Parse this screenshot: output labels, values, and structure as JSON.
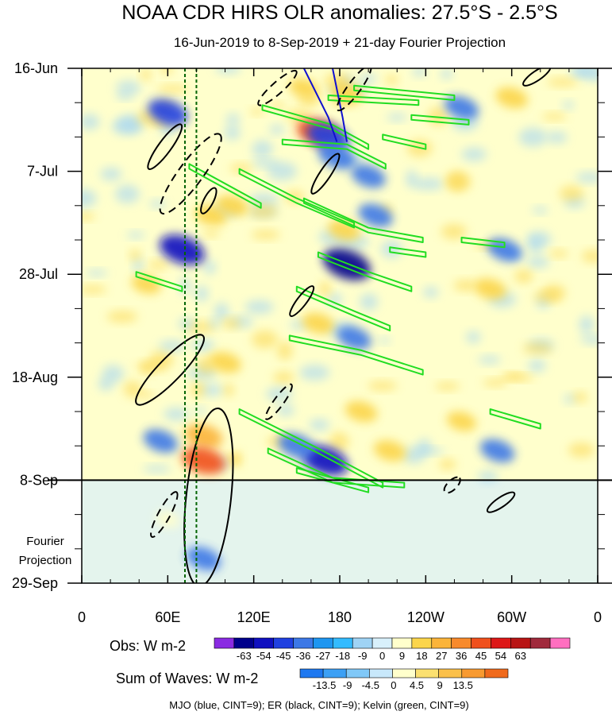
{
  "chart_data": {
    "type": "heatmap",
    "title": "NOAA CDR HIRS OLR anomalies: 27.5°S - 2.5°S",
    "subtitle": "16-Jun-2019 to 8-Sep-2019 + 21-day Fourier Projection",
    "x_ticks": [
      {
        "lon": 0,
        "label": "0"
      },
      {
        "lon": 60,
        "label": "60E"
      },
      {
        "lon": 120,
        "label": "120E"
      },
      {
        "lon": 180,
        "label": "180"
      },
      {
        "lon": 240,
        "label": "120W"
      },
      {
        "lon": 300,
        "label": "60W"
      },
      {
        "lon": 360,
        "label": "0"
      }
    ],
    "xlim": [
      0,
      360
    ],
    "y_ticks": [
      {
        "day": 0,
        "label": "16-Jun"
      },
      {
        "day": 21,
        "label": "7-Jul"
      },
      {
        "day": 42,
        "label": "28-Jul"
      },
      {
        "day": 63,
        "label": "18-Aug"
      },
      {
        "day": 84,
        "label": "8-Sep"
      },
      {
        "day": 105,
        "label": "29-Sep"
      }
    ],
    "ylim": [
      0,
      105
    ],
    "observation_end_day": 84,
    "projection_label_line1": "Fourier",
    "projection_label_line2": "Projection",
    "obs_colorbar": {
      "label": "Obs: W m-2",
      "levels": [
        "-63",
        "-54",
        "-45",
        "-36",
        "-27",
        "-18",
        "-9",
        "0",
        "9",
        "18",
        "27",
        "36",
        "45",
        "54",
        "63"
      ],
      "colors": [
        "#8a2be2",
        "#00008b",
        "#1010c0",
        "#2040e0",
        "#3c78e6",
        "#1e96f0",
        "#33bbff",
        "#9fd3f5",
        "#d8f0fb",
        "#ffffcc",
        "#fbd54b",
        "#fbb43a",
        "#f88a2c",
        "#f0501c",
        "#dd1818",
        "#b81515",
        "#a02a3c",
        "#ff6fc0"
      ]
    },
    "waves_colorbar": {
      "label": "Sum of Waves: W m-2",
      "levels": [
        "-13.5",
        "-9",
        "-4.5",
        "0",
        "4.5",
        "9",
        "13.5"
      ],
      "colors": [
        "#1e78f0",
        "#3ca0f5",
        "#80c8f8",
        "#c8e8fb",
        "#ffffcc",
        "#fbe070",
        "#fbc04a",
        "#f89a30",
        "#f06a1c"
      ]
    },
    "footer": "MJO (blue, CINT=9); ER (black, CINT=9); Kelvin (green, CINT=9)",
    "wave_colors": {
      "mjo": "#1010d0",
      "er": "#000000",
      "kelvin": "#22dd22",
      "dashed_meridian": "#006400"
    },
    "dashed_meridians_lon": [
      72,
      80
    ],
    "anomaly_features": [
      {
        "lon": 60,
        "day": 9,
        "value": -40
      },
      {
        "lon": 70,
        "day": 37,
        "value": -50
      },
      {
        "lon": 90,
        "day": 30,
        "value": 25
      },
      {
        "lon": 105,
        "day": 28,
        "value": 25
      },
      {
        "lon": 155,
        "day": 4,
        "value": 20
      },
      {
        "lon": 165,
        "day": 13,
        "value": 45
      },
      {
        "lon": 172,
        "day": 14,
        "value": -45
      },
      {
        "lon": 178,
        "day": 18,
        "value": -35
      },
      {
        "lon": 185,
        "day": 5,
        "value": 25
      },
      {
        "lon": 200,
        "day": 22,
        "value": -30
      },
      {
        "lon": 205,
        "day": 30,
        "value": -30
      },
      {
        "lon": 185,
        "day": 40,
        "value": -55
      },
      {
        "lon": 183,
        "day": 33,
        "value": 25
      },
      {
        "lon": 165,
        "day": 52,
        "value": 25
      },
      {
        "lon": 190,
        "day": 55,
        "value": -30
      },
      {
        "lon": 85,
        "day": 75,
        "value": 35
      },
      {
        "lon": 85,
        "day": 80,
        "value": 45
      },
      {
        "lon": 170,
        "day": 80,
        "value": -50
      },
      {
        "lon": 150,
        "day": 77,
        "value": -35
      },
      {
        "lon": 195,
        "day": 70,
        "value": 25
      },
      {
        "lon": 215,
        "day": 78,
        "value": 25
      },
      {
        "lon": 55,
        "day": 76,
        "value": -30
      },
      {
        "lon": 100,
        "day": 60,
        "value": 25
      },
      {
        "lon": 265,
        "day": 8,
        "value": -30
      },
      {
        "lon": 300,
        "day": 6,
        "value": 25
      },
      {
        "lon": 295,
        "day": 37,
        "value": -30
      },
      {
        "lon": 290,
        "day": 78,
        "value": -30
      },
      {
        "lon": 285,
        "day": 45,
        "value": 25
      },
      {
        "lon": 265,
        "day": 72,
        "value": 20
      },
      {
        "lon": 45,
        "day": 44,
        "value": 20
      },
      {
        "lon": 85,
        "day": 100,
        "value": -30
      },
      {
        "lon": 60,
        "day": 92,
        "value": 9
      }
    ],
    "kelvin_contours": [
      [
        [
          126,
          8
        ],
        [
          175,
          12
        ],
        [
          200,
          16
        ]
      ],
      [
        [
          140,
          15
        ],
        [
          185,
          16
        ],
        [
          212,
          20
        ]
      ],
      [
        [
          110,
          21
        ],
        [
          150,
          27
        ],
        [
          190,
          32
        ]
      ],
      [
        [
          75,
          20
        ],
        [
          125,
          28
        ]
      ],
      [
        [
          155,
          27
        ],
        [
          200,
          33
        ],
        [
          238,
          35
        ]
      ],
      [
        [
          165,
          38
        ],
        [
          200,
          42
        ],
        [
          230,
          45
        ]
      ],
      [
        [
          38,
          42
        ],
        [
          70,
          45
        ]
      ],
      [
        [
          150,
          45
        ],
        [
          190,
          50
        ],
        [
          215,
          53
        ]
      ],
      [
        [
          145,
          55
        ],
        [
          195,
          58
        ],
        [
          238,
          62
        ]
      ],
      [
        [
          110,
          70
        ],
        [
          165,
          78
        ],
        [
          210,
          85
        ]
      ],
      [
        [
          130,
          78
        ],
        [
          175,
          84
        ],
        [
          225,
          85
        ]
      ],
      [
        [
          150,
          82
        ],
        [
          200,
          86
        ]
      ],
      [
        [
          215,
          37
        ],
        [
          240,
          38
        ]
      ],
      [
        [
          265,
          35
        ],
        [
          295,
          36
        ]
      ],
      [
        [
          285,
          70
        ],
        [
          320,
          73
        ]
      ],
      [
        [
          210,
          14
        ],
        [
          240,
          16
        ]
      ],
      [
        [
          172,
          6
        ],
        [
          235,
          7
        ]
      ],
      [
        [
          190,
          4
        ],
        [
          260,
          6
        ]
      ],
      [
        [
          230,
          10
        ],
        [
          270,
          11
        ]
      ]
    ],
    "mjo_contours": [
      [
        [
          155,
          0
        ],
        [
          172,
          10
        ],
        [
          178,
          15
        ]
      ],
      [
        [
          175,
          0
        ],
        [
          182,
          10
        ],
        [
          185,
          15
        ]
      ]
    ],
    "er_contours": [
      {
        "dashed": false,
        "points": [
          [
            48,
            20
          ],
          [
            68,
            12
          ]
        ]
      },
      {
        "dashed": false,
        "points": [
          [
            40,
            68
          ],
          [
            83,
            55
          ]
        ]
      },
      {
        "dashed": false,
        "points": [
          [
            82,
            105
          ],
          [
            95,
            70
          ]
        ]
      },
      {
        "dashed": true,
        "points": [
          [
            57,
            29
          ],
          [
            95,
            14
          ]
        ]
      },
      {
        "dashed": true,
        "points": [
          [
            50,
            95
          ],
          [
            65,
            87
          ]
        ]
      },
      {
        "dashed": true,
        "points": [
          [
            125,
            7
          ],
          [
            148,
            1
          ]
        ]
      },
      {
        "dashed": true,
        "points": [
          [
            130,
            71
          ],
          [
            145,
            65
          ]
        ]
      },
      {
        "dashed": false,
        "points": [
          [
            160,
            45
          ],
          [
            147,
            50
          ]
        ]
      },
      {
        "dashed": false,
        "points": [
          [
            162,
            25
          ],
          [
            178,
            18
          ]
        ]
      },
      {
        "dashed": false,
        "points": [
          [
            85,
            29
          ],
          [
            92,
            25
          ]
        ]
      },
      {
        "dashed": false,
        "points": [
          [
            285,
            90
          ],
          [
            300,
            87
          ]
        ]
      },
      {
        "dashed": false,
        "points": [
          [
            310,
            3
          ],
          [
            325,
            0
          ]
        ]
      },
      {
        "dashed": true,
        "points": [
          [
            255,
            86
          ],
          [
            262,
            84
          ]
        ]
      },
      {
        "dashed": true,
        "points": [
          [
            180,
            8
          ],
          [
            200,
            0
          ]
        ]
      }
    ]
  }
}
